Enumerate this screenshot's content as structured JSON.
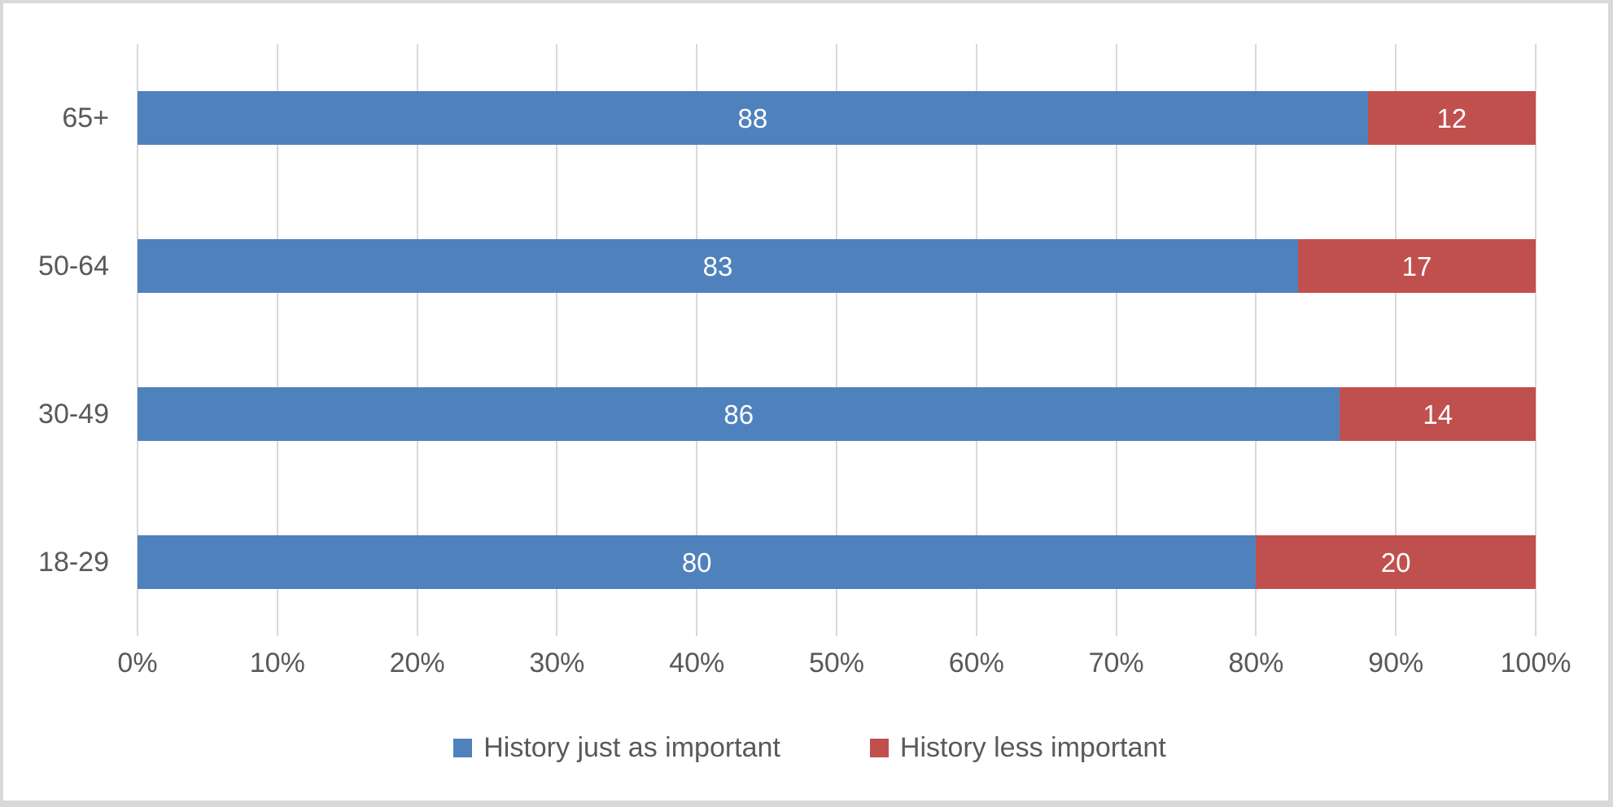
{
  "chart_data": {
    "type": "bar",
    "subtype": "horizontal-stacked",
    "title": "",
    "xlabel": "",
    "ylabel": "",
    "categories": [
      "65+",
      "50-64",
      "30-49",
      "18-29"
    ],
    "series": [
      {
        "name": "History just as important",
        "color": "#4F81BD",
        "values": [
          88,
          83,
          86,
          80
        ]
      },
      {
        "name": "History less important",
        "color": "#C0504D",
        "values": [
          12,
          17,
          14,
          20
        ]
      }
    ],
    "xlim": [
      0,
      100
    ],
    "x_ticks": [
      "0%",
      "10%",
      "20%",
      "30%",
      "40%",
      "50%",
      "60%",
      "70%",
      "80%",
      "90%",
      "100%"
    ],
    "x_tick_values": [
      0,
      10,
      20,
      30,
      40,
      50,
      60,
      70,
      80,
      90,
      100
    ],
    "grid": true,
    "gridline_color": "#D9D9D9",
    "bar_label_color": "#FFFFFF",
    "axis_text_color": "#595959",
    "legend_position": "bottom",
    "legend": [
      {
        "label": "History just as important",
        "color": "#4F81BD"
      },
      {
        "label": "History less important",
        "color": "#C0504D"
      }
    ]
  }
}
